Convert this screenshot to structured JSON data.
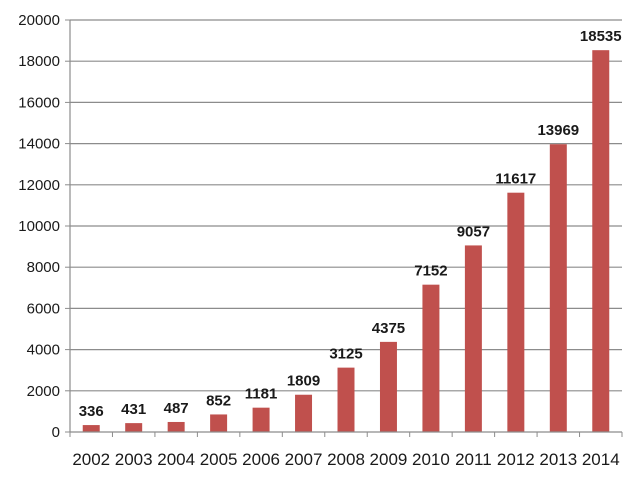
{
  "chart_data": {
    "type": "bar",
    "title": "",
    "xlabel": "",
    "ylabel": "",
    "categories": [
      "2002",
      "2003",
      "2004",
      "2005",
      "2006",
      "2007",
      "2008",
      "2009",
      "2010",
      "2011",
      "2012",
      "2013",
      "2014"
    ],
    "values": [
      336,
      431,
      487,
      852,
      1181,
      1809,
      3125,
      4375,
      7152,
      9057,
      11617,
      13969,
      18535
    ],
    "ylim": [
      0,
      20000
    ],
    "yticks": [
      "0",
      "2000",
      "4000",
      "6000",
      "8000",
      "10000",
      "12000",
      "14000",
      "16000",
      "18000",
      "20000"
    ],
    "grid": true,
    "legend": "none",
    "colors": {
      "bar": "#c0504d",
      "grid": "#8c8c8c",
      "axis": "#8c8c8c"
    }
  }
}
